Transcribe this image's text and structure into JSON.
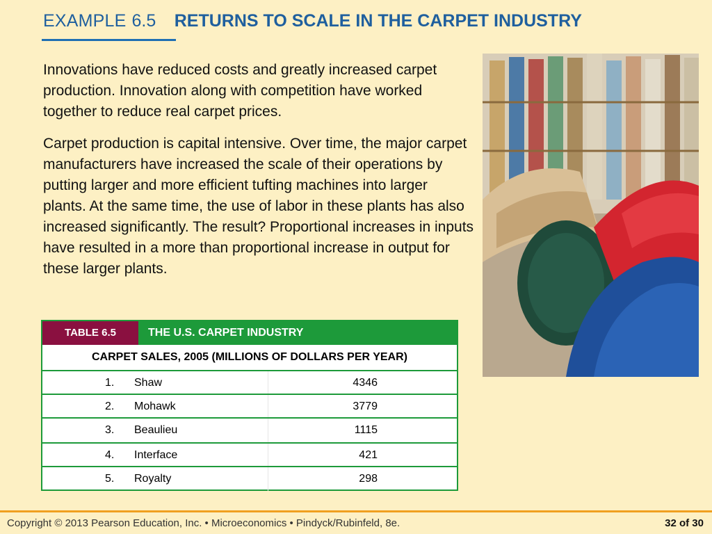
{
  "header": {
    "example_label": "EXAMPLE",
    "example_number": "6.5",
    "title": "RETURNS TO SCALE IN THE CARPET INDUSTRY"
  },
  "body": {
    "paragraph1": "Innovations have reduced costs and greatly increased carpet production.  Innovation along with competition have worked together to reduce real carpet prices.",
    "paragraph2": "Carpet production is capital intensive. Over time, the major carpet manufacturers have increased the scale of their operations by putting larger and more efficient tufting machines into larger plants. At the same time, the use of labor in these plants has also increased significantly. The result? Proportional increases in inputs have resulted in a more than proportional increase in output for these larger plants."
  },
  "table": {
    "badge": "TABLE 6.5",
    "title": "THE U.S. CARPET INDUSTRY",
    "caption": "CARPET SALES, 2005 (MILLIONS OF DOLLARS PER YEAR)",
    "rows": [
      {
        "rank": "1.",
        "name": "Shaw",
        "value": "4346"
      },
      {
        "rank": "2.",
        "name": "Mohawk",
        "value": "3779"
      },
      {
        "rank": "3.",
        "name": "Beaulieu",
        "value": "1115"
      },
      {
        "rank": "4.",
        "name": "Interface",
        "value": "421"
      },
      {
        "rank": "5.",
        "name": "Royalty",
        "value": "298"
      }
    ]
  },
  "footer": {
    "copyright": "Copyright © 2013  Pearson Education, Inc. •  Microeconomics  •  Pindyck/Rubinfeld, 8e.",
    "page": "32 of 30"
  },
  "colors": {
    "background": "#fdf0c4",
    "title_blue": "#1f5f9e",
    "table_green": "#1d9a3a",
    "badge_maroon": "#8a1040",
    "footer_orange": "#f0a020"
  }
}
